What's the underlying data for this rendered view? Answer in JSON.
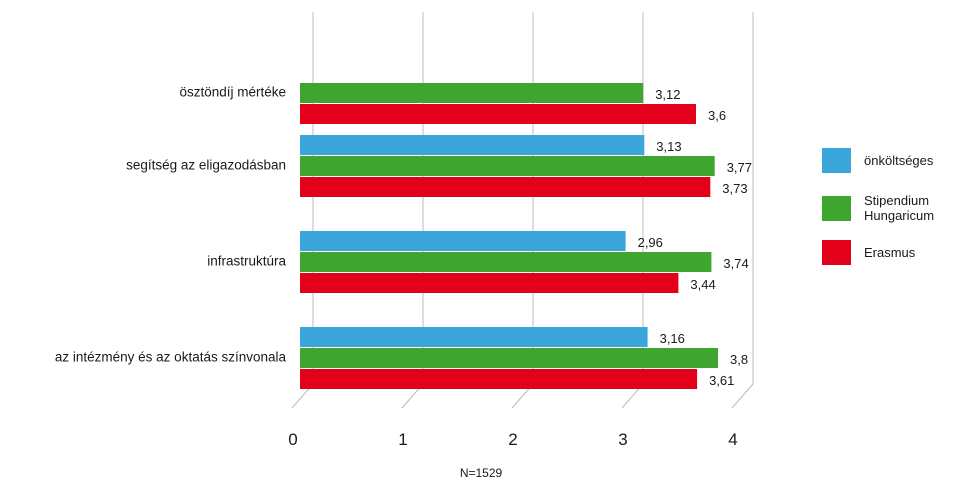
{
  "chart_data": {
    "type": "bar",
    "orientation": "horizontal",
    "categories": [
      "ösztöndíj mértéke",
      "segítség az eligazodásban",
      "infrastruktúra",
      "az intézmény és az oktatás színvonala"
    ],
    "series": [
      {
        "name": "önköltséges",
        "color": "#3aa6dc",
        "values": [
          null,
          3.13,
          2.96,
          3.16
        ],
        "labels": [
          "",
          "3,13",
          "2,96",
          "3,16"
        ]
      },
      {
        "name": "Stipendium Hungaricum",
        "color": "#3ea52f",
        "values": [
          3.12,
          3.77,
          3.74,
          3.8
        ],
        "labels": [
          "3,12",
          "3,77",
          "3,74",
          "3,8"
        ]
      },
      {
        "name": "Erasmus",
        "color": "#e2001a",
        "values": [
          3.6,
          3.73,
          3.44,
          3.61
        ],
        "labels": [
          "3,6",
          "3,73",
          "3,44",
          "3,61"
        ]
      }
    ],
    "xlim": [
      0,
      4
    ],
    "xticks": [
      "0",
      "1",
      "2",
      "3",
      "4"
    ],
    "grid": true,
    "legend_position": "right",
    "note": "N=1529"
  }
}
